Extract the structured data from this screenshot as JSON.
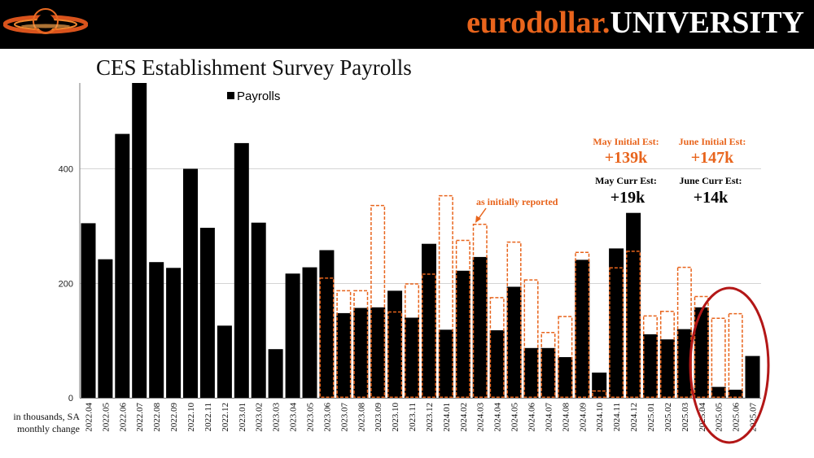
{
  "brand": {
    "part1": "eurodollar.",
    "part2": "UNIVERSITY"
  },
  "page_title": "CES Establishment Survey Payrolls",
  "unit_label_line1": "in thousands, SA",
  "unit_label_line2": "monthly change",
  "colors": {
    "bar": "#000000",
    "initial": "#e8641c",
    "circle": "#b31717",
    "header": "#000000"
  },
  "annotations": {
    "as_initially_reported": "as initially reported",
    "may_initial_label": "May Initial Est:",
    "may_initial_value": "+139k",
    "june_initial_label": "June Initial Est:",
    "june_initial_value": "+147k",
    "may_curr_label": "May Curr Est:",
    "may_curr_value": "+19k",
    "june_curr_label": "June Curr Est:",
    "june_curr_value": "+14k"
  },
  "chart_data": {
    "type": "bar",
    "title": "CES Establishment Survey Payrolls",
    "ylabel": "in thousands, SA monthly change",
    "ylim": [
      0,
      550
    ],
    "yticks": [
      0,
      200,
      400
    ],
    "grid": true,
    "legend": {
      "entries": [
        "Payrolls"
      ],
      "position": "top-left"
    },
    "categories": [
      "2022.04",
      "2022.05",
      "2022.06",
      "2022.07",
      "2022.08",
      "2022.09",
      "2022.10",
      "2022.11",
      "2022.12",
      "2023.01",
      "2023.02",
      "2023.03",
      "2023.04",
      "2023.05",
      "2023.06",
      "2023.07",
      "2023.08",
      "2023.09",
      "2023.10",
      "2023.11",
      "2023.12",
      "2024.01",
      "2024.02",
      "2024.03",
      "2024.04",
      "2024.05",
      "2024.06",
      "2024.07",
      "2024.08",
      "2024.09",
      "2024.10",
      "2024.11",
      "2024.12",
      "2025.01",
      "2025.02",
      "2025.03",
      "2025.04",
      "2025.05",
      "2025.06",
      "2025.07"
    ],
    "series": [
      {
        "name": "Payrolls",
        "style": "solid",
        "values": [
          305,
          242,
          461,
          550,
          237,
          227,
          400,
          297,
          126,
          445,
          306,
          85,
          217,
          228,
          258,
          148,
          157,
          158,
          187,
          140,
          269,
          119,
          222,
          246,
          118,
          194,
          87,
          87,
          71,
          241,
          44,
          261,
          323,
          111,
          102,
          120,
          158,
          19,
          14,
          73
        ]
      },
      {
        "name": "as initially reported",
        "style": "dashed",
        "values": [
          null,
          null,
          null,
          null,
          null,
          null,
          null,
          null,
          null,
          null,
          null,
          null,
          null,
          null,
          209,
          187,
          187,
          336,
          150,
          199,
          216,
          353,
          275,
          303,
          175,
          272,
          206,
          114,
          142,
          254,
          12,
          227,
          256,
          143,
          151,
          228,
          177,
          139,
          147,
          null
        ]
      }
    ]
  }
}
